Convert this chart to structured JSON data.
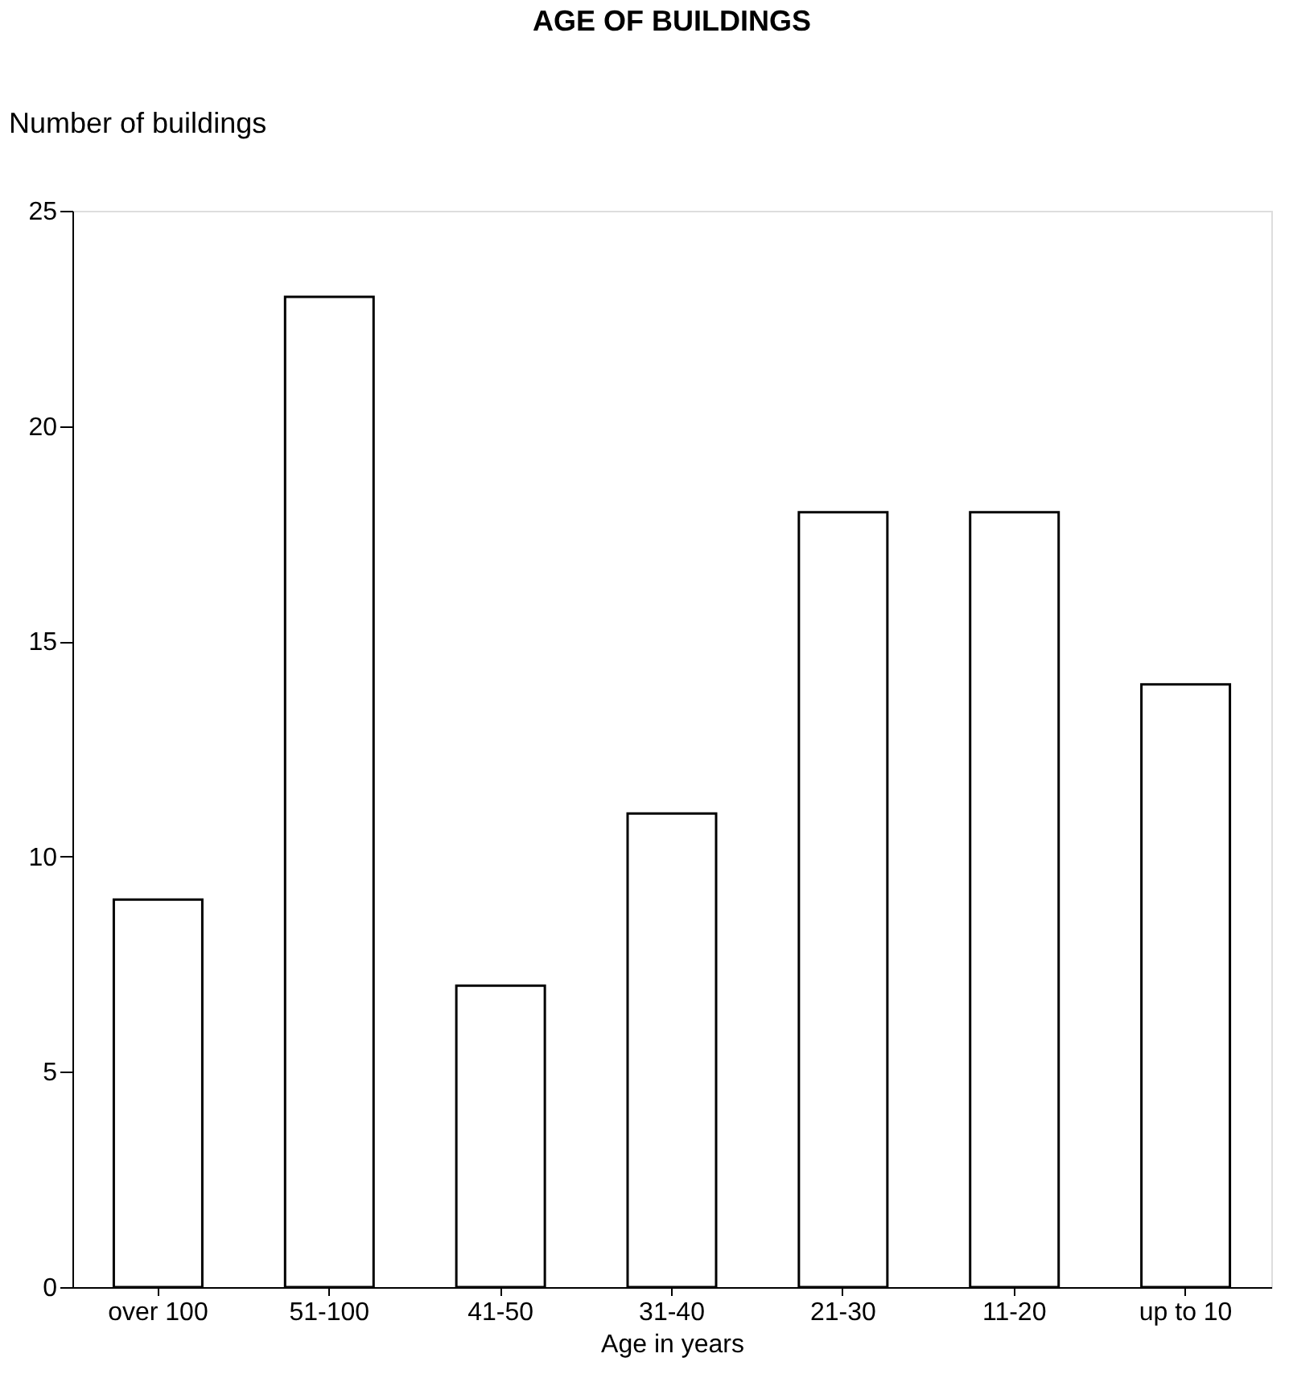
{
  "chart_data": {
    "type": "bar",
    "title": "AGE OF BUILDINGS",
    "xlabel": "Age in years",
    "ylabel": "Number of buildings",
    "categories": [
      "over 100",
      "51-100",
      "41-50",
      "31-40",
      "21-30",
      "11-20",
      "up to 10"
    ],
    "values": [
      9,
      23,
      7,
      11,
      18,
      18,
      14
    ],
    "color": "#ffffff",
    "ylim": [
      0,
      25
    ],
    "yticks": [
      0,
      5,
      10,
      15,
      20,
      25
    ],
    "grid": false
  }
}
